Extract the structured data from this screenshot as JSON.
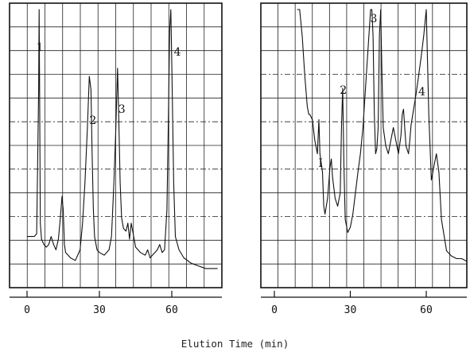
{
  "chart_data": [
    {
      "type": "line",
      "xlabel": "Elution Time (min)",
      "xlim": [
        -5,
        79
      ],
      "ylim": [
        0,
        100
      ],
      "x_ticks": [
        0,
        30,
        60
      ],
      "grid": true,
      "series": [
        {
          "x": [
            0,
            3,
            4,
            4.8,
            5,
            5.2,
            5.5,
            6,
            7,
            8,
            9,
            10,
            11,
            12,
            13,
            13.8,
            14.5,
            15,
            15.5,
            16,
            17,
            18,
            20,
            22,
            23,
            24,
            25,
            25.8,
            26.5,
            27,
            27.5,
            28,
            29,
            30,
            32,
            34,
            35,
            36,
            36.8,
            37.5,
            38,
            38.6,
            39.2,
            40,
            41,
            41.8,
            42.5,
            43.2,
            44,
            45,
            47,
            49,
            50,
            51,
            52,
            53,
            54,
            55,
            56,
            57,
            58,
            58.6,
            59.1,
            59.6,
            60,
            60.8,
            61.5,
            63,
            65,
            68,
            71,
            74,
            77,
            79
          ],
          "y": [
            0.15,
            0.15,
            0.16,
            0.7,
            1.0,
            0.7,
            0.2,
            0.14,
            0.12,
            0.11,
            0.12,
            0.15,
            0.12,
            0.1,
            0.14,
            0.22,
            0.3,
            0.25,
            0.12,
            0.09,
            0.08,
            0.07,
            0.06,
            0.1,
            0.2,
            0.35,
            0.55,
            0.75,
            0.7,
            0.45,
            0.25,
            0.15,
            0.1,
            0.09,
            0.08,
            0.1,
            0.15,
            0.35,
            0.55,
            0.78,
            0.6,
            0.35,
            0.22,
            0.18,
            0.17,
            0.2,
            0.14,
            0.2,
            0.16,
            0.11,
            0.09,
            0.08,
            0.1,
            0.07,
            0.08,
            0.09,
            0.1,
            0.12,
            0.09,
            0.1,
            0.25,
            0.6,
            0.92,
            1.0,
            0.8,
            0.35,
            0.15,
            0.1,
            0.07,
            0.05,
            0.04,
            0.03,
            0.03,
            0.03
          ]
        }
      ],
      "peaks": [
        {
          "label": "1",
          "x": 4
        },
        {
          "label": "2",
          "x": 26
        },
        {
          "label": "3",
          "x": 38
        },
        {
          "label": "4",
          "x": 61
        }
      ]
    },
    {
      "type": "line",
      "xlabel": "Elution Time (min)",
      "xlim": [
        -5,
        79
      ],
      "ylim": [
        0,
        100
      ],
      "x_ticks": [
        0,
        30,
        60
      ],
      "grid": true,
      "series": [
        {
          "x": [
            9,
            10,
            11,
            12,
            13,
            13.6,
            14,
            15,
            16,
            17,
            17.6,
            18,
            19,
            19.5,
            20,
            21,
            22,
            22.5,
            23,
            24,
            25,
            26,
            26.5,
            27,
            27.5,
            28,
            29,
            30,
            31,
            32,
            33,
            34,
            35,
            36,
            37,
            38,
            38.5,
            39,
            39.5,
            40,
            40.5,
            41,
            41.5,
            42,
            42.5,
            43,
            44,
            45,
            46,
            47,
            48,
            49,
            50,
            50.5,
            51,
            51.5,
            52,
            53,
            53.5,
            54,
            55,
            56,
            57,
            58,
            59,
            60,
            61,
            62,
            63,
            64,
            65,
            66,
            68,
            70,
            72,
            74,
            76,
            79
          ],
          "y": [
            1.0,
            1.0,
            0.9,
            0.75,
            0.63,
            0.6,
            0.6,
            0.58,
            0.5,
            0.45,
            0.58,
            0.45,
            0.38,
            0.25,
            0.22,
            0.28,
            0.4,
            0.43,
            0.36,
            0.28,
            0.25,
            0.3,
            0.55,
            0.7,
            0.4,
            0.2,
            0.15,
            0.17,
            0.22,
            0.3,
            0.38,
            0.45,
            0.55,
            0.7,
            0.85,
            1.0,
            1.0,
            0.9,
            0.6,
            0.45,
            0.47,
            0.55,
            0.9,
            1.0,
            0.75,
            0.55,
            0.48,
            0.45,
            0.5,
            0.55,
            0.5,
            0.45,
            0.52,
            0.6,
            0.62,
            0.55,
            0.48,
            0.45,
            0.5,
            0.56,
            0.62,
            0.68,
            0.75,
            0.82,
            0.9,
            1.0,
            0.6,
            0.35,
            0.4,
            0.45,
            0.38,
            0.2,
            0.08,
            0.06,
            0.05,
            0.05,
            0.04,
            0.03
          ]
        }
      ],
      "peaks": [
        {
          "label": "I",
          "x": 17
        },
        {
          "label": "2",
          "x": 26
        },
        {
          "label": "3",
          "x": 38
        },
        {
          "label": "4",
          "x": 57
        }
      ]
    }
  ]
}
